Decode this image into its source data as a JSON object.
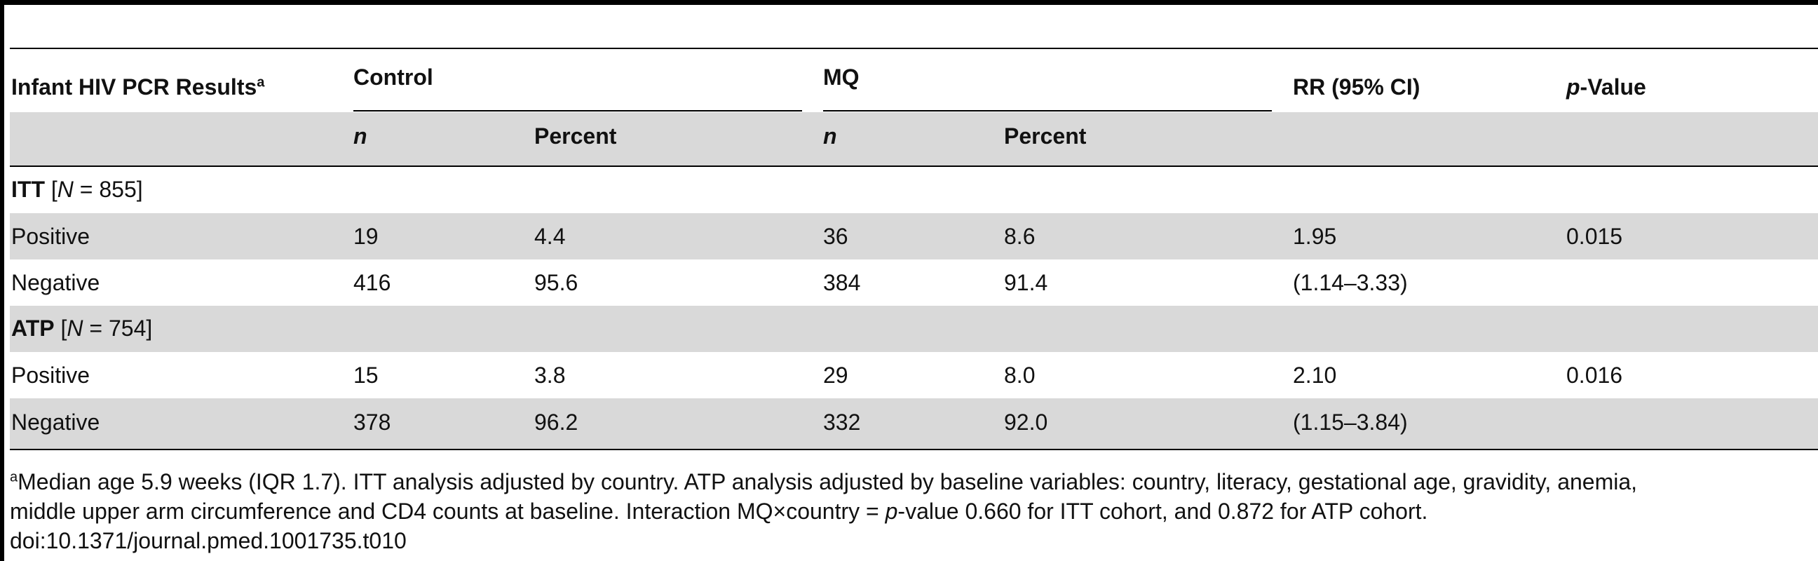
{
  "table": {
    "header": {
      "col1": "Infant HIV PCR Results",
      "col1_sup": "a",
      "control": "Control",
      "mq": "MQ",
      "rr": "RR (95% CI)",
      "pvalue_italic": "p",
      "pvalue_rest": "-Value"
    },
    "subheader": {
      "control_n": "n",
      "control_pct": "Percent",
      "mq_n": "n",
      "mq_pct": "Percent"
    },
    "sections": [
      {
        "label": "ITT",
        "n_open": "[",
        "n_italic": "N",
        "n_rest": " = 855]",
        "rows": [
          {
            "label": "Positive",
            "control_n": "19",
            "control_pct": "4.4",
            "mq_n": "36",
            "mq_pct": "8.6",
            "rr": "1.95",
            "p": "0.015"
          },
          {
            "label": "Negative",
            "control_n": "416",
            "control_pct": "95.6",
            "mq_n": "384",
            "mq_pct": "91.4",
            "rr": "(1.14–3.33)",
            "p": ""
          }
        ]
      },
      {
        "label": "ATP",
        "n_open": "[",
        "n_italic": "N",
        "n_rest": " = 754]",
        "rows": [
          {
            "label": "Positive",
            "control_n": "15",
            "control_pct": "3.8",
            "mq_n": "29",
            "mq_pct": "8.0",
            "rr": "2.10",
            "p": "0.016"
          },
          {
            "label": "Negative",
            "control_n": "378",
            "control_pct": "96.2",
            "mq_n": "332",
            "mq_pct": "92.0",
            "rr": "(1.15–3.84)",
            "p": ""
          }
        ]
      }
    ]
  },
  "footnote": {
    "sup": "a",
    "line1": "Median age 5.9 weeks (IQR 1.7). ITT analysis adjusted by country. ATP analysis adjusted by baseline variables: country, literacy, gestational age, gravidity, anemia,",
    "line2_a": "middle upper arm circumference and CD4 counts at baseline. Interaction MQ×country = ",
    "line2_italic": "p",
    "line2_b": "-value 0.660 for ITT cohort, and 0.872 for ATP cohort.",
    "doi": "doi:10.1371/journal.pmed.1001735.t010"
  }
}
